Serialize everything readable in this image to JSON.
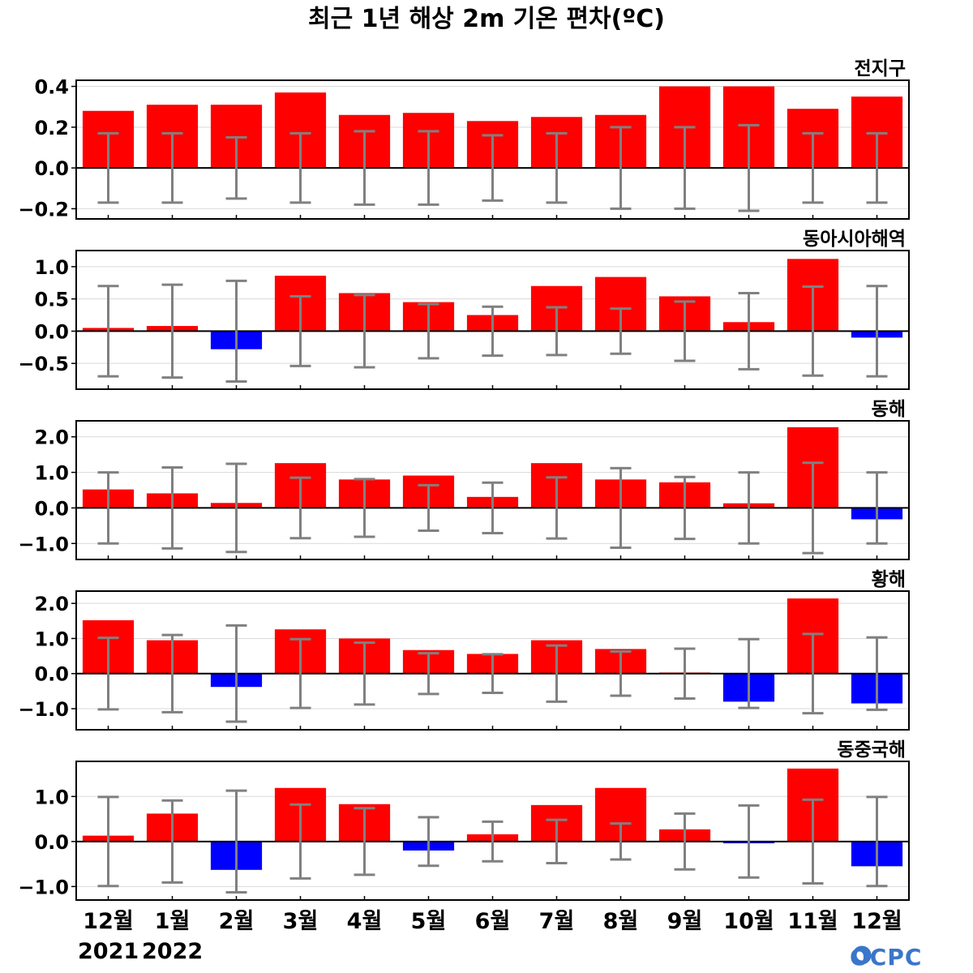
{
  "title": "최근 1년 해상 2m 기온 편차(ºC)",
  "months": [
    "12월",
    "1월",
    "2월",
    "3월",
    "4월",
    "5월",
    "6월",
    "7월",
    "8월",
    "9월",
    "10월",
    "11월",
    "12월"
  ],
  "years": {
    "start": "2021",
    "end": "2022"
  },
  "logo": "OCPC",
  "colors": {
    "positive": "#ff0000",
    "negative": "#0000ff",
    "errorbar": "#808080",
    "zero_line": "#000000",
    "grid": "#d9d9d9"
  },
  "chart_data": [
    {
      "type": "bar",
      "region": "전지구",
      "categories": [
        "12월",
        "1월",
        "2월",
        "3월",
        "4월",
        "5월",
        "6월",
        "7월",
        "8월",
        "9월",
        "10월",
        "11월",
        "12월"
      ],
      "values": [
        0.28,
        0.31,
        0.31,
        0.37,
        0.26,
        0.27,
        0.23,
        0.25,
        0.26,
        0.4,
        0.4,
        0.29,
        0.35
      ],
      "error": [
        0.17,
        0.17,
        0.15,
        0.17,
        0.18,
        0.18,
        0.16,
        0.17,
        0.2,
        0.2,
        0.21,
        0.17,
        0.17
      ],
      "ylim": [
        -0.25,
        0.43
      ],
      "yticks": [
        -0.2,
        0.0,
        0.2,
        0.4
      ],
      "ytick_labels": [
        "−0.2",
        "0.0",
        "0.2",
        "0.4"
      ]
    },
    {
      "type": "bar",
      "region": "동아시아해역",
      "categories": [
        "12월",
        "1월",
        "2월",
        "3월",
        "4월",
        "5월",
        "6월",
        "7월",
        "8월",
        "9월",
        "10월",
        "11월",
        "12월"
      ],
      "values": [
        0.05,
        0.08,
        -0.28,
        0.86,
        0.59,
        0.45,
        0.25,
        0.7,
        0.84,
        0.54,
        0.14,
        1.12,
        -0.1
      ],
      "error": [
        0.7,
        0.72,
        0.78,
        0.54,
        0.56,
        0.42,
        0.38,
        0.37,
        0.35,
        0.46,
        0.59,
        0.69,
        0.7
      ],
      "ylim": [
        -0.9,
        1.25
      ],
      "yticks": [
        -0.5,
        0.0,
        0.5,
        1.0
      ],
      "ytick_labels": [
        "−0.5",
        "0.0",
        "0.5",
        "1.0"
      ]
    },
    {
      "type": "bar",
      "region": "동해",
      "categories": [
        "12월",
        "1월",
        "2월",
        "3월",
        "4월",
        "5월",
        "6월",
        "7월",
        "8월",
        "9월",
        "10월",
        "11월",
        "12월"
      ],
      "values": [
        0.52,
        0.41,
        0.14,
        1.26,
        0.8,
        0.91,
        0.31,
        1.26,
        0.8,
        0.72,
        0.13,
        2.27,
        -0.32
      ],
      "error": [
        1.0,
        1.14,
        1.24,
        0.85,
        0.81,
        0.64,
        0.71,
        0.86,
        1.12,
        0.87,
        1.0,
        1.27,
        1.0
      ],
      "ylim": [
        -1.45,
        2.45
      ],
      "yticks": [
        -1.0,
        0.0,
        1.0,
        2.0
      ],
      "ytick_labels": [
        "−1.0",
        "0.0",
        "1.0",
        "2.0"
      ]
    },
    {
      "type": "bar",
      "region": "황해",
      "categories": [
        "12월",
        "1월",
        "2월",
        "3월",
        "4월",
        "5월",
        "6월",
        "7월",
        "8월",
        "9월",
        "10월",
        "11월",
        "12월"
      ],
      "values": [
        1.52,
        0.95,
        -0.38,
        1.26,
        1.0,
        0.67,
        0.56,
        0.95,
        0.7,
        0.03,
        -0.8,
        2.14,
        -0.85
      ],
      "error": [
        1.02,
        1.1,
        1.37,
        0.98,
        0.88,
        0.58,
        0.55,
        0.8,
        0.63,
        0.71,
        0.98,
        1.13,
        1.03
      ],
      "ylim": [
        -1.6,
        2.35
      ],
      "yticks": [
        -1.0,
        0.0,
        1.0,
        2.0
      ],
      "ytick_labels": [
        "−1.0",
        "0.0",
        "1.0",
        "2.0"
      ]
    },
    {
      "type": "bar",
      "region": "동중국해",
      "categories": [
        "12월",
        "1월",
        "2월",
        "3월",
        "4월",
        "5월",
        "6월",
        "7월",
        "8월",
        "9월",
        "10월",
        "11월",
        "12월"
      ],
      "values": [
        0.13,
        0.62,
        -0.63,
        1.19,
        0.83,
        -0.2,
        0.16,
        0.81,
        1.19,
        0.27,
        -0.04,
        1.62,
        -0.55
      ],
      "error": [
        0.99,
        0.91,
        1.13,
        0.82,
        0.74,
        0.54,
        0.44,
        0.48,
        0.4,
        0.62,
        0.8,
        0.93,
        0.99
      ],
      "ylim": [
        -1.3,
        1.78
      ],
      "yticks": [
        -1.0,
        0.0,
        1.0
      ],
      "ytick_labels": [
        "−1.0",
        "0.0",
        "1.0"
      ]
    }
  ]
}
